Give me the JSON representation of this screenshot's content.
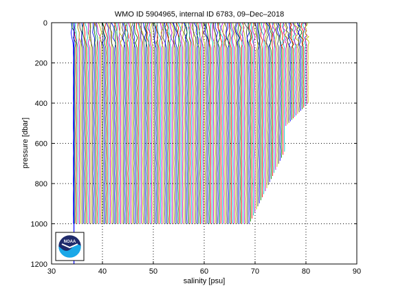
{
  "chart_data": {
    "type": "line",
    "title": "WMO ID 5904965, internal ID 6783, 09–Dec–2018",
    "xlabel": "salinity [psu]",
    "ylabel": "pressure [dbar]",
    "xlim": [
      30,
      90
    ],
    "ylim": [
      0,
      1200
    ],
    "y_reversed": true,
    "grid": true,
    "xticks": [
      30,
      40,
      50,
      60,
      70,
      80,
      90
    ],
    "yticks": [
      0,
      200,
      400,
      600,
      800,
      1000,
      1200
    ],
    "profiles": {
      "count": 160,
      "start_salinity": 34.3,
      "step_salinity": 0.29,
      "surface_salinity_offset": -0.4,
      "max_pressure": 1000,
      "colors": [
        "#0000ff",
        "#008000",
        "#ff0000",
        "#00bfbf",
        "#bf00bf",
        "#bfbf00",
        "#404040"
      ]
    },
    "reference_profile": {
      "salinity": 34.4,
      "pressure_range": [
        0,
        1200
      ],
      "color": "#0000ff"
    }
  },
  "logo": {
    "text": "NOAA",
    "colors": {
      "dark": "#1f2a6b",
      "light": "#19a8e8"
    }
  }
}
